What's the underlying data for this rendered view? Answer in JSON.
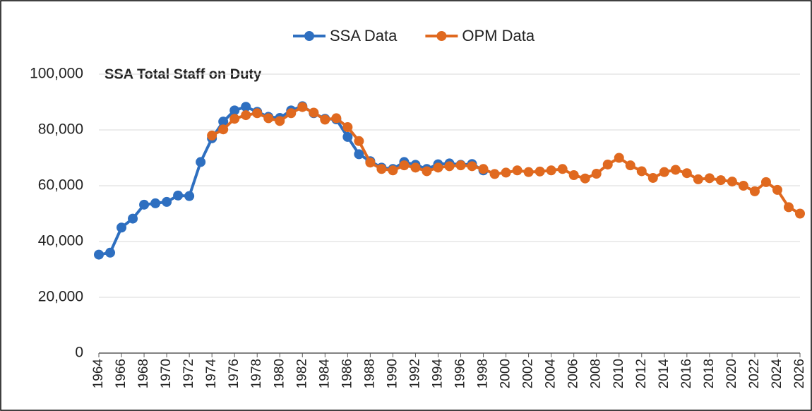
{
  "chart_data": {
    "type": "line",
    "title": "SSA Total Staff on Duty",
    "x": [
      1964,
      1965,
      1966,
      1967,
      1968,
      1969,
      1970,
      1971,
      1972,
      1973,
      1974,
      1975,
      1976,
      1977,
      1978,
      1979,
      1980,
      1981,
      1982,
      1983,
      1984,
      1985,
      1986,
      1987,
      1988,
      1989,
      1990,
      1991,
      1992,
      1993,
      1994,
      1995,
      1996,
      1997,
      1998,
      1999,
      2000,
      2001,
      2002,
      2003,
      2004,
      2005,
      2006,
      2007,
      2008,
      2009,
      2010,
      2011,
      2012,
      2013,
      2014,
      2015,
      2016,
      2017,
      2018,
      2019,
      2020,
      2021,
      2022,
      2023,
      2024,
      2025,
      2026
    ],
    "series": [
      {
        "name": "SSA Data",
        "color": "#2e6fc0",
        "values": [
          35300,
          36000,
          45000,
          48200,
          53200,
          53700,
          54200,
          56500,
          56300,
          68500,
          77000,
          83000,
          87000,
          88300,
          86500,
          84700,
          84300,
          87000,
          88500,
          86000,
          84000,
          83800,
          77500,
          71300,
          68800,
          66500,
          66000,
          68500,
          67500,
          66000,
          67700,
          68000,
          67500,
          67800,
          65500,
          null,
          null,
          null,
          null,
          null,
          null,
          null,
          null,
          null,
          null,
          null,
          null,
          null,
          null,
          null,
          null,
          null,
          null,
          null,
          null,
          null,
          null,
          null,
          null,
          null,
          null,
          null,
          null
        ]
      },
      {
        "name": "OPM Data",
        "color": "#e0691f",
        "values": [
          null,
          null,
          null,
          null,
          null,
          null,
          null,
          null,
          null,
          null,
          78000,
          80200,
          84000,
          85300,
          86000,
          84200,
          83200,
          86000,
          88200,
          86200,
          83700,
          84200,
          81000,
          76000,
          68300,
          66000,
          65500,
          67300,
          66500,
          65200,
          66500,
          67000,
          67300,
          67000,
          66000,
          64200,
          64700,
          65500,
          64900,
          65100,
          65500,
          66000,
          63800,
          62600,
          64300,
          67600,
          70000,
          67300,
          65200,
          62800,
          64900,
          65700,
          64500,
          62300,
          62700,
          62000,
          61500,
          60000,
          58000,
          61300,
          58500,
          52300,
          50000
        ]
      }
    ],
    "xlim": [
      1964,
      2026
    ],
    "xticks": [
      1964,
      1966,
      1968,
      1970,
      1972,
      1974,
      1976,
      1978,
      1980,
      1982,
      1984,
      1986,
      1988,
      1990,
      1992,
      1994,
      1996,
      1998,
      2000,
      2002,
      2004,
      2006,
      2008,
      2010,
      2012,
      2014,
      2016,
      2018,
      2020,
      2022,
      2024,
      2026
    ],
    "ylim": [
      0,
      100000
    ],
    "yticks": [
      0,
      {
        "value": 20000,
        "label": "20,000"
      },
      {
        "value": 40000,
        "label": "40,000"
      },
      {
        "value": 60000,
        "label": "60,000"
      },
      {
        "value": 80000,
        "label": "80,000"
      },
      {
        "value": 100000,
        "label": "100,000"
      }
    ],
    "grid": true,
    "legend": "top"
  }
}
